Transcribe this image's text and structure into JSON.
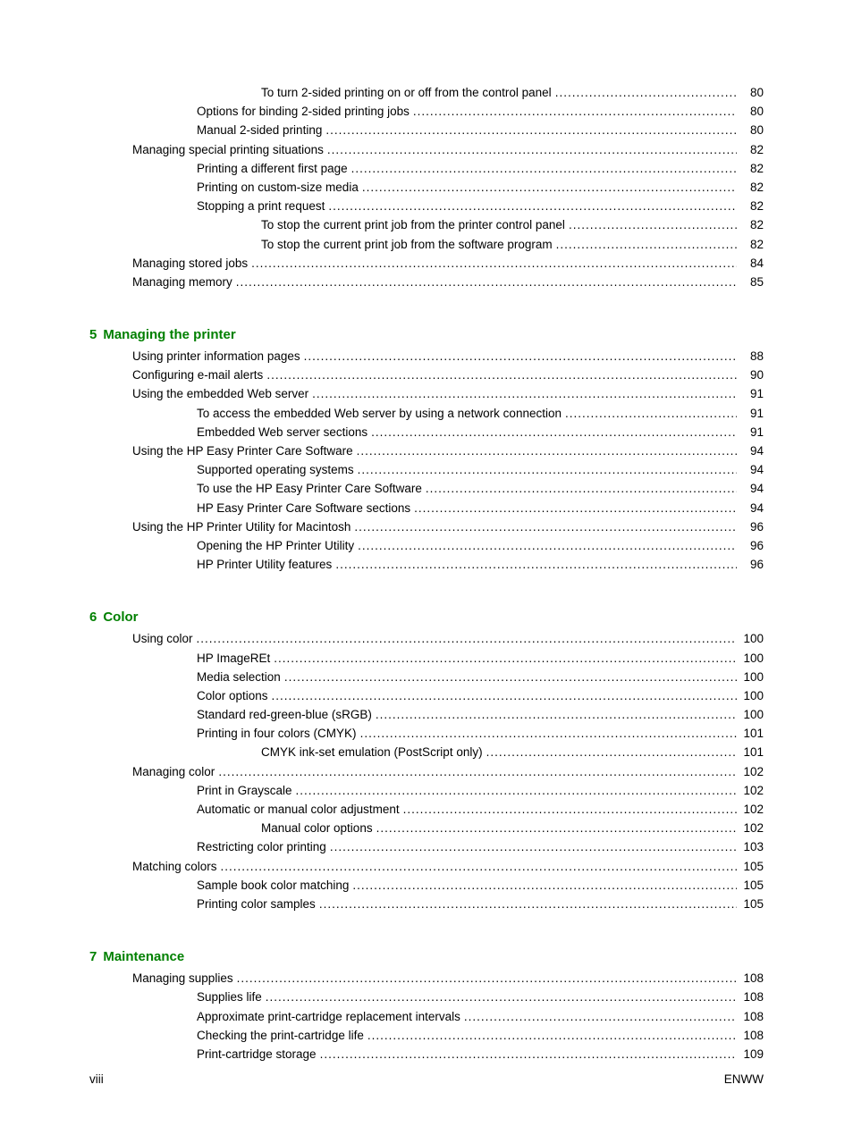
{
  "sections": [
    {
      "entries": [
        {
          "text": "To turn 2-sided printing on or off from the control panel",
          "page": "80",
          "indent": 3
        },
        {
          "text": "Options for binding 2-sided printing jobs",
          "page": "80",
          "indent": 2
        },
        {
          "text": "Manual 2-sided printing",
          "page": "80",
          "indent": 2
        },
        {
          "text": "Managing special printing situations",
          "page": "82",
          "indent": 1
        },
        {
          "text": "Printing a different first page",
          "page": "82",
          "indent": 2
        },
        {
          "text": "Printing on custom-size media",
          "page": "82",
          "indent": 2
        },
        {
          "text": "Stopping a print request",
          "page": "82",
          "indent": 2
        },
        {
          "text": "To stop the current print job from the printer control panel",
          "page": "82",
          "indent": 3
        },
        {
          "text": "To stop the current print job from the software program",
          "page": "82",
          "indent": 3
        },
        {
          "text": "Managing stored jobs",
          "page": "84",
          "indent": 1
        },
        {
          "text": "Managing memory",
          "page": "85",
          "indent": 1
        }
      ]
    },
    {
      "chapter_num": "5",
      "chapter_title": "Managing the printer",
      "entries": [
        {
          "text": "Using printer information pages",
          "page": "88",
          "indent": 1
        },
        {
          "text": "Configuring e-mail alerts",
          "page": "90",
          "indent": 1
        },
        {
          "text": "Using the embedded Web server",
          "page": "91",
          "indent": 1
        },
        {
          "text": "To access the embedded Web server by using a network connection",
          "page": "91",
          "indent": 2
        },
        {
          "text": "Embedded Web server sections",
          "page": "91",
          "indent": 2
        },
        {
          "text": "Using the HP Easy Printer Care Software",
          "page": "94",
          "indent": 1
        },
        {
          "text": "Supported operating systems",
          "page": "94",
          "indent": 2
        },
        {
          "text": "To use the HP Easy Printer Care Software",
          "page": "94",
          "indent": 2
        },
        {
          "text": "HP Easy Printer Care Software sections",
          "page": "94",
          "indent": 2
        },
        {
          "text": "Using the HP Printer Utility for Macintosh",
          "page": "96",
          "indent": 1
        },
        {
          "text": "Opening the HP Printer Utility",
          "page": "96",
          "indent": 2
        },
        {
          "text": "HP Printer Utility features",
          "page": "96",
          "indent": 2
        }
      ]
    },
    {
      "chapter_num": "6",
      "chapter_title": "Color",
      "entries": [
        {
          "text": "Using color",
          "page": "100",
          "indent": 1
        },
        {
          "text": "HP ImageREt",
          "page": "100",
          "indent": 2
        },
        {
          "text": "Media selection",
          "page": "100",
          "indent": 2
        },
        {
          "text": "Color options",
          "page": "100",
          "indent": 2
        },
        {
          "text": "Standard red-green-blue (sRGB)",
          "page": "100",
          "indent": 2
        },
        {
          "text": "Printing in four colors (CMYK)",
          "page": "101",
          "indent": 2
        },
        {
          "text": "CMYK ink-set emulation (PostScript only)",
          "page": "101",
          "indent": 3
        },
        {
          "text": "Managing color",
          "page": "102",
          "indent": 1
        },
        {
          "text": "Print in Grayscale",
          "page": "102",
          "indent": 2
        },
        {
          "text": "Automatic or manual color adjustment",
          "page": "102",
          "indent": 2
        },
        {
          "text": "Manual color options",
          "page": "102",
          "indent": 3
        },
        {
          "text": "Restricting color printing",
          "page": "103",
          "indent": 2
        },
        {
          "text": "Matching colors",
          "page": "105",
          "indent": 1
        },
        {
          "text": "Sample book color matching",
          "page": "105",
          "indent": 2
        },
        {
          "text": "Printing color samples",
          "page": "105",
          "indent": 2
        }
      ]
    },
    {
      "chapter_num": "7",
      "chapter_title": "Maintenance",
      "entries": [
        {
          "text": "Managing supplies",
          "page": "108",
          "indent": 1
        },
        {
          "text": "Supplies life",
          "page": "108",
          "indent": 2
        },
        {
          "text": "Approximate print-cartridge replacement intervals",
          "page": "108",
          "indent": 2
        },
        {
          "text": "Checking the print-cartridge life",
          "page": "108",
          "indent": 2
        },
        {
          "text": "Print-cartridge storage",
          "page": "109",
          "indent": 2
        }
      ]
    }
  ],
  "footer": {
    "left": "viii",
    "right": "ENWW"
  },
  "colors": {
    "heading_color": "#008000",
    "text_color": "#000000",
    "background_color": "#ffffff"
  },
  "typography": {
    "body_fontsize": 13.5,
    "heading_fontsize": 15
  }
}
